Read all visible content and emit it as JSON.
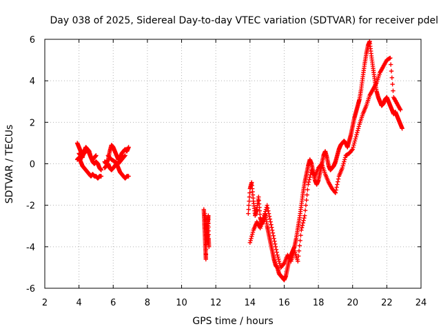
{
  "chart_data": {
    "type": "scatter",
    "title": "Day 038 of 2025, Sidereal Day-to-day VTEC variation (SDTVAR) for receiver pdel",
    "xlabel": "GPS time / hours",
    "ylabel": "SDTVAR / TECUs",
    "xlim": [
      2,
      24
    ],
    "ylim": [
      -6,
      6
    ],
    "xticks": [
      "2",
      "4",
      "6",
      "8",
      "10",
      "12",
      "14",
      "16",
      "18",
      "20",
      "22",
      "24"
    ],
    "yticks": [
      "-6",
      "-4",
      "-2",
      "0",
      "2",
      "4",
      "6"
    ],
    "grid": true,
    "marker": "plus",
    "color": "#ff0000",
    "series": [
      {
        "name": "segment-1",
        "x": [
          3.9,
          4.0,
          4.1,
          4.2,
          4.3,
          4.4,
          4.5,
          4.6,
          4.7,
          4.8,
          4.9,
          5.0,
          5.1,
          5.2,
          5.3,
          3.9,
          4.0,
          4.1,
          4.2,
          4.3,
          4.4,
          4.5,
          4.6,
          4.7,
          4.8,
          4.9,
          5.0,
          5.1,
          5.2,
          5.3,
          4.0,
          4.1,
          4.2,
          4.3,
          4.4,
          4.5,
          4.6,
          4.7,
          4.8,
          4.9,
          5.0
        ],
        "y": [
          1.0,
          0.8,
          0.6,
          0.4,
          0.5,
          0.6,
          0.7,
          0.6,
          0.3,
          0.1,
          0.0,
          0.1,
          0.0,
          -0.2,
          -0.3,
          0.2,
          0.3,
          0.1,
          -0.1,
          -0.2,
          -0.3,
          -0.4,
          -0.5,
          -0.6,
          -0.5,
          -0.6,
          -0.6,
          -0.7,
          -0.6,
          -0.6,
          0.5,
          0.4,
          0.3,
          0.6,
          0.8,
          0.7,
          0.5,
          0.3,
          0.2,
          0.3,
          0.4
        ]
      },
      {
        "name": "segment-2",
        "x": [
          5.5,
          5.6,
          5.7,
          5.8,
          5.9,
          6.0,
          6.1,
          6.2,
          6.3,
          6.4,
          6.5,
          6.6,
          6.7,
          6.8,
          6.9,
          5.5,
          5.6,
          5.7,
          5.8,
          5.9,
          6.0,
          6.1,
          6.2,
          6.3,
          6.4,
          6.5,
          6.6,
          6.7,
          6.8,
          6.9,
          5.7,
          5.9,
          6.1,
          6.3,
          6.5,
          6.7
        ],
        "y": [
          0.1,
          0.0,
          0.2,
          0.6,
          0.9,
          0.8,
          0.6,
          0.4,
          0.2,
          0.3,
          0.5,
          0.6,
          0.7,
          0.6,
          0.8,
          -0.2,
          -0.1,
          0.0,
          -0.2,
          -0.3,
          -0.2,
          -0.1,
          0.0,
          -0.2,
          -0.4,
          -0.5,
          -0.6,
          -0.7,
          -0.6,
          -0.6,
          0.4,
          0.2,
          0.1,
          0.0,
          0.2,
          0.4
        ]
      },
      {
        "name": "segment-3",
        "x": [
          11.3,
          11.32,
          11.34,
          11.36,
          11.38,
          11.4,
          11.42,
          11.44,
          11.46,
          11.48,
          11.5,
          11.52,
          11.54,
          11.56,
          11.58,
          11.6,
          11.35,
          11.45,
          11.55
        ],
        "y": [
          -2.2,
          -2.6,
          -3.0,
          -3.4,
          -3.8,
          -4.2,
          -4.6,
          -3.2,
          -2.9,
          -3.5,
          -3.8,
          -3.3,
          -2.8,
          -2.5,
          -3.6,
          -4.0,
          -2.4,
          -3.0,
          -3.6
        ]
      },
      {
        "name": "segment-4",
        "x": [
          13.9,
          14.0,
          14.1,
          14.2,
          14.3,
          14.4,
          14.5,
          14.6,
          14.7,
          14.8,
          14.9,
          15.0,
          15.1,
          15.2,
          15.3,
          15.4,
          15.5,
          15.6,
          15.7,
          15.8,
          15.9,
          16.0,
          16.1,
          16.2,
          16.3,
          16.4,
          16.5,
          16.6,
          16.7,
          16.8,
          16.9,
          17.0,
          17.1,
          17.2,
          17.3,
          17.4,
          17.5,
          17.6,
          17.7,
          17.8,
          17.9,
          18.0,
          18.1,
          18.2,
          18.3,
          18.4,
          18.5,
          18.6,
          18.7,
          18.8,
          18.9,
          19.0,
          19.1,
          19.2,
          19.3,
          19.4,
          19.5,
          19.6,
          19.7,
          19.8,
          19.9,
          20.0,
          20.1,
          20.2,
          20.3,
          20.4,
          20.5,
          20.6,
          20.7,
          20.8,
          20.9,
          21.0,
          21.1,
          21.2,
          21.3,
          21.4,
          21.5,
          21.6,
          21.7,
          21.8,
          21.9,
          22.0,
          22.1,
          22.2,
          22.3,
          22.4,
          22.5,
          22.6,
          22.7,
          22.8,
          22.9
        ],
        "y": [
          -2.4,
          -1.2,
          -0.9,
          -1.8,
          -2.5,
          -2.2,
          -1.6,
          -2.6,
          -2.9,
          -2.7,
          -2.4,
          -3.0,
          -3.4,
          -3.8,
          -4.2,
          -4.6,
          -4.9,
          -5.0,
          -5.3,
          -5.4,
          -5.5,
          -5.6,
          -5.4,
          -5.0,
          -4.6,
          -4.4,
          -4.2,
          -4.0,
          -3.6,
          -3.1,
          -2.6,
          -2.0,
          -1.4,
          -0.9,
          -0.5,
          -0.1,
          0.2,
          0.0,
          -0.4,
          -0.8,
          -1.0,
          -0.8,
          -0.4,
          0.0,
          0.4,
          0.6,
          0.3,
          -0.1,
          -0.3,
          -0.2,
          -0.1,
          0.1,
          0.4,
          0.7,
          0.9,
          1.0,
          1.1,
          1.0,
          0.8,
          1.1,
          1.4,
          1.8,
          2.2,
          2.5,
          2.8,
          3.1,
          3.6,
          4.2,
          4.8,
          5.3,
          5.7,
          5.9,
          5.2,
          4.6,
          4.0,
          3.5,
          3.2,
          3.0,
          2.8,
          2.9,
          3.1,
          3.2,
          3.0,
          2.8,
          2.6,
          2.4,
          2.5,
          2.3,
          2.1,
          1.9,
          1.7
        ]
      },
      {
        "name": "segment-5",
        "x": [
          14.0,
          14.2,
          14.4,
          14.6,
          14.8,
          15.0,
          15.2,
          15.4,
          15.6,
          15.8,
          16.0,
          16.2,
          16.4,
          16.6,
          16.8,
          17.0,
          17.2,
          17.4,
          17.6,
          17.8,
          18.0,
          18.2,
          18.4,
          18.6,
          18.8,
          19.0,
          19.2,
          19.4,
          19.6,
          19.8,
          20.0,
          20.2,
          20.4,
          20.6,
          20.8,
          21.0,
          21.2,
          21.4,
          21.6,
          21.8,
          22.0,
          22.2,
          22.4,
          22.6,
          22.8
        ],
        "y": [
          -3.8,
          -3.2,
          -2.8,
          -3.1,
          -2.6,
          -2.0,
          -2.8,
          -3.6,
          -4.4,
          -5.0,
          -4.8,
          -4.4,
          -4.7,
          -4.2,
          -4.7,
          -3.2,
          -2.5,
          -1.0,
          -0.3,
          -0.6,
          -0.2,
          0.0,
          -0.5,
          -0.9,
          -1.2,
          -1.4,
          -0.6,
          -0.2,
          0.4,
          0.5,
          0.7,
          1.3,
          1.9,
          2.4,
          2.8,
          3.3,
          3.6,
          3.9,
          4.4,
          4.7,
          5.0,
          5.1,
          3.2,
          2.9,
          2.6
        ]
      }
    ]
  }
}
